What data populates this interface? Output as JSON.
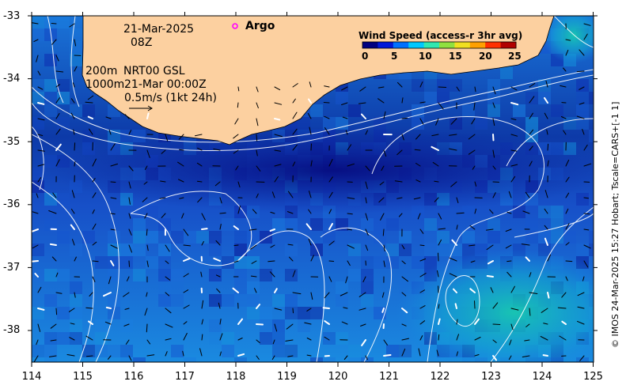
{
  "date": "21-Mar-2025",
  "hour": "08Z",
  "argo_label": "Argo",
  "isobath_labels": [
    "200m",
    "1000m"
  ],
  "product_label": "NRT00 GSL",
  "product_time": "21-Mar 00:00Z",
  "vector_scale_label": "0.5m/s (1kt 24h)",
  "colorbar": {
    "title": "Wind Speed (access-r 3hr avg)",
    "ticks": [
      "0",
      "5",
      "10",
      "15",
      "20",
      "25"
    ],
    "colors": [
      "#000080",
      "#0018d8",
      "#0070ff",
      "#00c8ff",
      "#30e8b0",
      "#90e040",
      "#f0e020",
      "#ffa000",
      "#ff3000",
      "#b00000"
    ]
  },
  "side_credit": "© IMOS 24-Mar-2025 15:27 Hobart; Tscale=CARS+[-1 1]",
  "axes": {
    "lon_ticks": [
      "114",
      "115",
      "116",
      "117",
      "118",
      "119",
      "120",
      "121",
      "122",
      "123",
      "124",
      "125"
    ],
    "lat_ticks": [
      "-33",
      "-34",
      "-35",
      "-36",
      "-37",
      "-38"
    ],
    "lon_range": [
      114,
      125
    ],
    "lat_range": [
      -38.5,
      -33
    ]
  },
  "colors": {
    "land": "#fcd0a0",
    "argo_marker": "#ff00ff",
    "deep_ocean": "#0a1c9a",
    "ocean_mid": "#1468dc",
    "ocean_warm": "#10c0b8"
  }
}
